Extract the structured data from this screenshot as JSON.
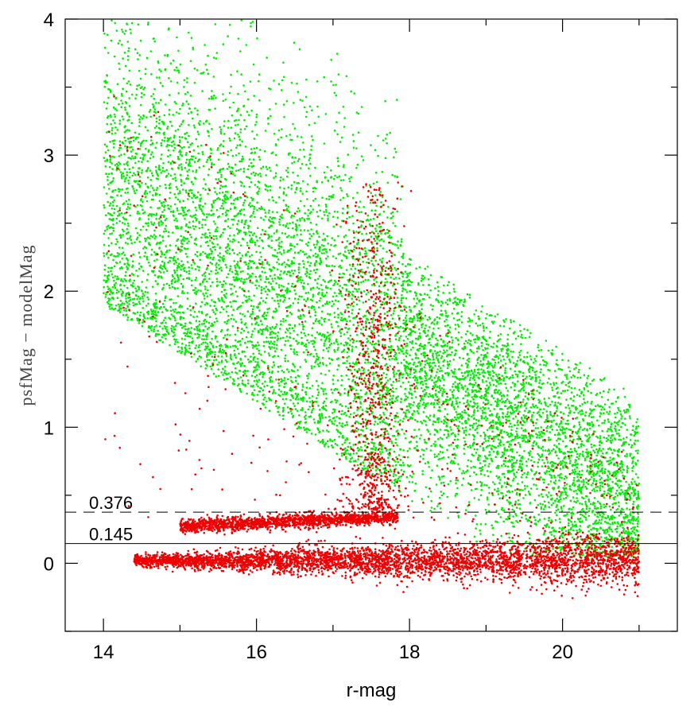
{
  "chart_data": {
    "type": "scatter",
    "xlabel": "r-mag",
    "ylabel": "psfMag − modelMag",
    "xlim": [
      13.5,
      21.5
    ],
    "ylim": [
      -0.5,
      4
    ],
    "x_ticks": [
      {
        "value": 14,
        "label": "14"
      },
      {
        "value": 16,
        "label": "16"
      },
      {
        "value": 18,
        "label": "18"
      },
      {
        "value": 20,
        "label": "20"
      }
    ],
    "y_ticks": [
      {
        "value": 0,
        "label": "0"
      },
      {
        "value": 1,
        "label": "1"
      },
      {
        "value": 2,
        "label": "2"
      },
      {
        "value": 3,
        "label": "3"
      },
      {
        "value": 4,
        "label": "4"
      }
    ],
    "grid": false,
    "legend": "none",
    "series": [
      {
        "color": "#00ee00",
        "description_points": [
          [
            14.1,
            3.8
          ],
          [
            14.3,
            2.6
          ],
          [
            14.5,
            2.2
          ],
          [
            14.8,
            3.3
          ],
          [
            15.0,
            2.0
          ],
          [
            15.2,
            3.6
          ],
          [
            15.4,
            2.4
          ],
          [
            15.6,
            1.9
          ],
          [
            15.8,
            3.0
          ],
          [
            16.0,
            1.6
          ],
          [
            16.2,
            2.7
          ],
          [
            16.5,
            1.3
          ],
          [
            16.8,
            2.2
          ],
          [
            17.0,
            1.0
          ],
          [
            17.2,
            3.1
          ],
          [
            17.4,
            0.8
          ],
          [
            17.6,
            2.0
          ],
          [
            17.8,
            0.6
          ],
          [
            18.0,
            1.6
          ],
          [
            18.3,
            1.2
          ],
          [
            18.6,
            1.8
          ],
          [
            18.9,
            0.9
          ],
          [
            19.2,
            1.4
          ],
          [
            19.5,
            0.6
          ],
          [
            19.8,
            1.0
          ],
          [
            20.1,
            0.5
          ],
          [
            20.4,
            0.8
          ],
          [
            20.7,
            0.4
          ],
          [
            20.9,
            0.2
          ]
        ]
      },
      {
        "color": "#ee0000",
        "description_points": [
          [
            14.5,
            0.0
          ],
          [
            15.0,
            0.0
          ],
          [
            15.5,
            0.01
          ],
          [
            16.0,
            0.02
          ],
          [
            16.5,
            0.0
          ],
          [
            17.0,
            0.03
          ],
          [
            17.5,
            0.05
          ],
          [
            18.0,
            0.04
          ],
          [
            18.5,
            0.06
          ],
          [
            19.0,
            0.05
          ],
          [
            19.5,
            0.05
          ],
          [
            20.0,
            0.04
          ],
          [
            20.5,
            0.03
          ],
          [
            21.0,
            0.02
          ],
          [
            15.0,
            0.28
          ],
          [
            15.5,
            0.27
          ],
          [
            16.0,
            0.28
          ],
          [
            16.5,
            0.3
          ],
          [
            17.0,
            0.31
          ],
          [
            17.5,
            0.34
          ],
          [
            17.8,
            0.35
          ],
          [
            17.5,
            1.0
          ],
          [
            17.6,
            1.5
          ],
          [
            17.5,
            2.0
          ],
          [
            17.6,
            0.7
          ]
        ]
      }
    ],
    "reference_lines": [
      {
        "y": 0.376,
        "label": "0.376",
        "style": "dashed"
      },
      {
        "y": 0.145,
        "label": "0.145",
        "style": "solid"
      }
    ]
  }
}
